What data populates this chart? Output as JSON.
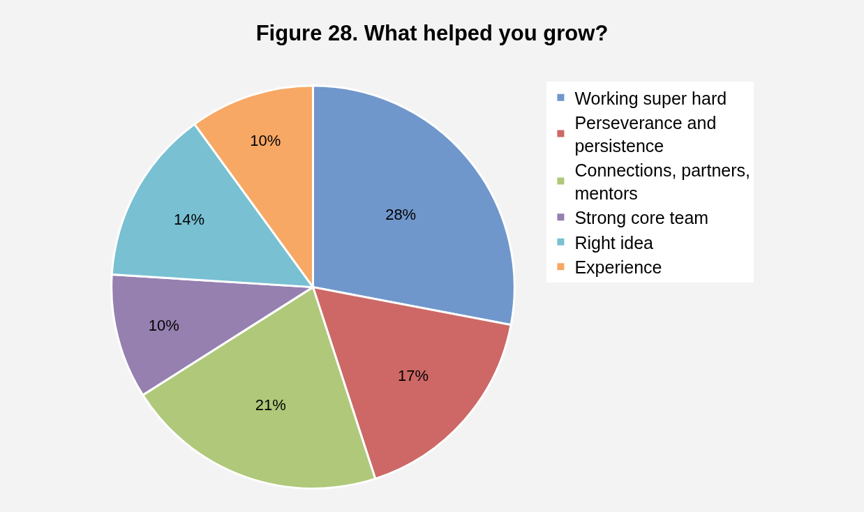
{
  "chart_data": {
    "type": "pie",
    "title": "Figure 28. What helped you grow?",
    "categories": [
      "Working super hard",
      "Perseverance and persistence",
      "Connections, partners, mentors",
      "Strong core team",
      "Right idea",
      "Experience"
    ],
    "values": [
      28,
      17,
      21,
      10,
      14,
      10
    ],
    "value_labels": [
      "28%",
      "17%",
      "21%",
      "10%",
      "14%",
      "10%"
    ],
    "colors": [
      "#7097cb",
      "#cd6866",
      "#afc87a",
      "#9580b0",
      "#78c0d2",
      "#f7a865"
    ],
    "legend": "right"
  }
}
